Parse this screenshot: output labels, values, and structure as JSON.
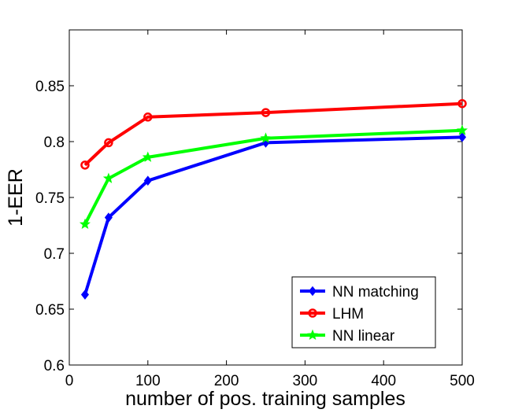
{
  "chart_data": {
    "type": "line",
    "title": "",
    "xlabel": "number of pos. training samples",
    "ylabel": "1-EER",
    "xlim": [
      0,
      500
    ],
    "ylim": [
      0.6,
      0.9
    ],
    "x_ticks": [
      0,
      100,
      200,
      300,
      400,
      500
    ],
    "x_tick_labels": [
      "0",
      "100",
      "200",
      "300",
      "400",
      "500"
    ],
    "y_ticks": [
      0.6,
      0.65,
      0.7,
      0.75,
      0.8,
      0.85
    ],
    "y_tick_labels": [
      "0.6",
      "0.65",
      "0.7",
      "0.75",
      "0.8",
      "0.85"
    ],
    "grid": false,
    "legend_position": "bottom-right",
    "x": [
      20,
      50,
      100,
      250,
      500
    ],
    "series": [
      {
        "name": "NN matching",
        "color": "#0000ff",
        "marker": "diamond",
        "values": [
          0.663,
          0.732,
          0.765,
          0.799,
          0.804
        ]
      },
      {
        "name": "LHM",
        "color": "#ff0000",
        "marker": "circle",
        "values": [
          0.779,
          0.799,
          0.822,
          0.826,
          0.834
        ]
      },
      {
        "name": "NN linear",
        "color": "#00ff00",
        "marker": "star",
        "values": [
          0.726,
          0.767,
          0.786,
          0.803,
          0.81
        ]
      }
    ]
  }
}
